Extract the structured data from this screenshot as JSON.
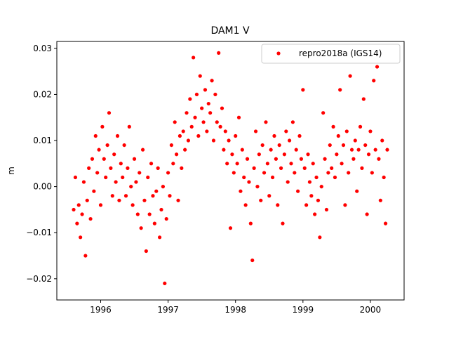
{
  "chart_data": {
    "type": "scatter",
    "title": "DAM1 V",
    "y_label": "m",
    "x": [
      1995.6,
      1995.625,
      1995.65,
      1995.675,
      1995.7,
      1995.725,
      1995.75,
      1995.775,
      1995.8,
      1995.825,
      1995.85,
      1995.875,
      1995.9,
      1995.925,
      1995.95,
      1995.975,
      1996,
      1996.025,
      1996.05,
      1996.075,
      1996.1,
      1996.125,
      1996.15,
      1996.175,
      1996.2,
      1996.225,
      1996.25,
      1996.275,
      1996.3,
      1996.325,
      1996.35,
      1996.375,
      1996.4,
      1996.425,
      1996.45,
      1996.475,
      1996.5,
      1996.525,
      1996.55,
      1996.575,
      1996.6,
      1996.625,
      1996.65,
      1996.675,
      1996.7,
      1996.725,
      1996.75,
      1996.775,
      1996.8,
      1996.825,
      1996.85,
      1996.875,
      1996.9,
      1996.925,
      1996.95,
      1996.975,
      1997,
      1997.025,
      1997.05,
      1997.075,
      1997.1,
      1997.125,
      1997.15,
      1997.175,
      1997.2,
      1997.225,
      1997.25,
      1997.275,
      1997.3,
      1997.325,
      1997.35,
      1997.375,
      1997.4,
      1997.425,
      1997.45,
      1997.475,
      1997.5,
      1997.525,
      1997.55,
      1997.575,
      1997.6,
      1997.625,
      1997.65,
      1997.675,
      1997.7,
      1997.725,
      1997.75,
      1997.775,
      1997.8,
      1997.825,
      1997.85,
      1997.875,
      1997.9,
      1997.925,
      1997.95,
      1997.975,
      1998,
      1998.025,
      1998.05,
      1998.075,
      1998.1,
      1998.125,
      1998.15,
      1998.175,
      1998.2,
      1998.225,
      1998.25,
      1998.275,
      1998.3,
      1998.325,
      1998.35,
      1998.375,
      1998.4,
      1998.425,
      1998.45,
      1998.475,
      1998.5,
      1998.525,
      1998.55,
      1998.575,
      1998.6,
      1998.625,
      1998.65,
      1998.675,
      1998.7,
      1998.725,
      1998.75,
      1998.775,
      1998.8,
      1998.825,
      1998.85,
      1998.875,
      1998.9,
      1998.925,
      1998.95,
      1998.975,
      1999,
      1999.025,
      1999.05,
      1999.075,
      1999.1,
      1999.125,
      1999.15,
      1999.175,
      1999.2,
      1999.225,
      1999.25,
      1999.275,
      1999.3,
      1999.325,
      1999.35,
      1999.375,
      1999.4,
      1999.425,
      1999.45,
      1999.475,
      1999.5,
      1999.525,
      1999.55,
      1999.575,
      1999.6,
      1999.625,
      1999.65,
      1999.675,
      1999.7,
      1999.725,
      1999.75,
      1999.775,
      1999.8,
      1999.825,
      1999.85,
      1999.875,
      1999.9,
      1999.925,
      1999.95,
      1999.975,
      2000,
      2000.025,
      2000.05,
      2000.075,
      2000.1,
      2000.125,
      2000.15,
      2000.175,
      2000.2,
      2000.225,
      2000.25
    ],
    "series": [
      {
        "name": "repro2018a (IGS14)",
        "color": "#ff0000",
        "values": [
          -0.005,
          0.002,
          -0.008,
          -0.004,
          -0.011,
          -0.006,
          0.001,
          -0.015,
          -0.003,
          0.004,
          -0.007,
          0.006,
          -0.001,
          0.011,
          0.003,
          0.008,
          -0.004,
          0.013,
          0.006,
          0.002,
          0.009,
          0.016,
          0.004,
          -0.002,
          0.007,
          0.001,
          0.011,
          -0.003,
          0.005,
          0.002,
          0.009,
          -0.002,
          0.004,
          0.013,
          0,
          -0.004,
          0.006,
          0.001,
          -0.006,
          0.003,
          -0.009,
          0.008,
          -0.003,
          -0.014,
          0.002,
          -0.006,
          0.005,
          -0.002,
          -0.008,
          -0.001,
          0.004,
          -0.011,
          -0.005,
          0,
          -0.021,
          -0.007,
          0.003,
          -0.002,
          0.009,
          0.005,
          0.014,
          0.007,
          -0.003,
          0.011,
          0.004,
          0.012,
          0.008,
          0.016,
          0.01,
          0.019,
          0.013,
          0.028,
          0.015,
          0.02,
          0.011,
          0.024,
          0.017,
          0.014,
          0.021,
          0.012,
          0.018,
          0.016,
          0.023,
          0.01,
          0.02,
          0.014,
          0.029,
          0.013,
          0.017,
          0.008,
          0.012,
          0.005,
          0.01,
          -0.009,
          0.007,
          0.003,
          0.011,
          0.005,
          0.015,
          -0.001,
          0.008,
          0.002,
          -0.004,
          0.006,
          0.001,
          -0.008,
          -0.016,
          0.004,
          0.012,
          0,
          0.007,
          -0.003,
          0.009,
          0.003,
          0.014,
          0.005,
          -0.002,
          0.008,
          0.002,
          0.011,
          0.006,
          -0.004,
          0.009,
          0.004,
          -0.008,
          0.007,
          0.012,
          0.001,
          0.01,
          0.005,
          0.014,
          0.003,
          0.008,
          -0.001,
          0.011,
          0.006,
          0.021,
          0.004,
          -0.004,
          0.007,
          0.001,
          -0.002,
          0.005,
          -0.006,
          0.002,
          -0.003,
          -0.011,
          0,
          0.016,
          0.006,
          -0.005,
          0.003,
          0.009,
          0.004,
          0.013,
          0.002,
          0.007,
          0.011,
          0.021,
          0.005,
          0.009,
          -0.004,
          0.012,
          0.003,
          0.024,
          0.008,
          0.006,
          0.01,
          -0.001,
          0.008,
          0.013,
          0.004,
          0.019,
          0.009,
          -0.006,
          0.007,
          0.012,
          0.003,
          0.023,
          0.008,
          0.026,
          0.006,
          -0.003,
          0.01,
          0.002,
          -0.008,
          0.008
        ]
      }
    ],
    "xlim": [
      1995.35,
      2000.5
    ],
    "xticks": [
      1996,
      1997,
      1998,
      1999,
      2000
    ],
    "ylim": [
      -0.0246,
      0.0315
    ],
    "yticks": [
      {
        "value": -0.02,
        "label": "−0.02"
      },
      {
        "value": -0.01,
        "label": "−0.01"
      },
      {
        "value": 0,
        "label": "0.00"
      },
      0.01,
      0.02,
      0.03
    ],
    "legend": "upper right",
    "grid": false
  }
}
